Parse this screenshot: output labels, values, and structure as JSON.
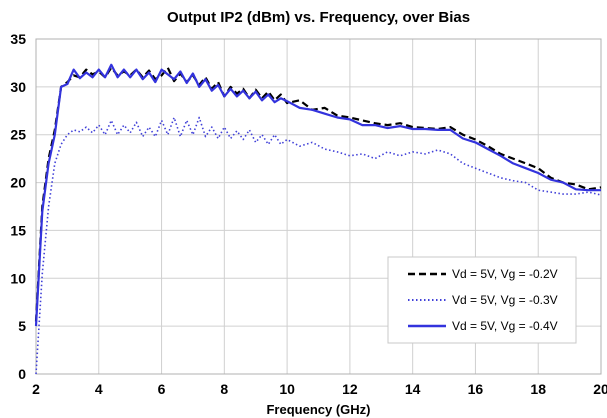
{
  "chart_data": {
    "type": "line",
    "title": "Output IP2 (dBm) vs. Frequency, over Bias",
    "xlabel": "Frequency (GHz)",
    "ylabel": "",
    "xlim": [
      2,
      20
    ],
    "ylim": [
      0,
      35
    ],
    "xticks": [
      2,
      4,
      6,
      8,
      10,
      12,
      14,
      16,
      18,
      20
    ],
    "yticks": [
      0,
      5,
      10,
      15,
      20,
      25,
      30,
      35
    ],
    "grid": true,
    "legend_position": "bottom-right",
    "series": [
      {
        "name": "Vd = 5V, Vg = -0.2V",
        "color": "#000000",
        "style": "dashed",
        "x": [
          2.0,
          2.2,
          2.4,
          2.6,
          2.8,
          3.0,
          3.2,
          3.4,
          3.6,
          3.8,
          4.0,
          4.2,
          4.4,
          4.6,
          4.8,
          5.0,
          5.2,
          5.4,
          5.6,
          5.8,
          6.0,
          6.2,
          6.4,
          6.6,
          6.8,
          7.0,
          7.2,
          7.4,
          7.6,
          7.8,
          8.0,
          8.2,
          8.4,
          8.6,
          8.8,
          9.0,
          9.2,
          9.4,
          9.6,
          9.8,
          10.0,
          10.4,
          10.8,
          11.2,
          11.6,
          12.0,
          12.4,
          12.8,
          13.2,
          13.6,
          14.0,
          14.4,
          14.8,
          15.2,
          15.6,
          16.0,
          16.4,
          16.8,
          17.2,
          17.6,
          18.0,
          18.4,
          18.8,
          19.2,
          19.6,
          20.0
        ],
        "y": [
          5.5,
          17.5,
          22.5,
          25.5,
          30.0,
          30.5,
          31.2,
          31.0,
          31.8,
          31.3,
          31.6,
          31.0,
          32.0,
          31.2,
          31.6,
          31.2,
          31.8,
          31.0,
          31.7,
          30.8,
          31.2,
          32.0,
          30.6,
          31.4,
          30.5,
          31.2,
          30.2,
          31.0,
          29.8,
          30.5,
          29.0,
          30.0,
          29.3,
          29.8,
          28.8,
          29.7,
          28.8,
          29.5,
          28.6,
          29.2,
          28.3,
          28.6,
          27.6,
          27.8,
          27.0,
          26.8,
          26.5,
          26.2,
          26.0,
          26.2,
          25.8,
          25.7,
          25.6,
          25.8,
          25.0,
          24.5,
          23.8,
          23.0,
          22.5,
          22.0,
          21.5,
          20.5,
          20.0,
          19.8,
          19.3,
          19.5
        ]
      },
      {
        "name": "Vd = 5V, Vg = -0.3V",
        "color": "#4040d8",
        "style": "dotted",
        "x": [
          2.0,
          2.2,
          2.4,
          2.6,
          2.8,
          3.0,
          3.2,
          3.4,
          3.6,
          3.8,
          4.0,
          4.2,
          4.4,
          4.6,
          4.8,
          5.0,
          5.2,
          5.4,
          5.6,
          5.8,
          6.0,
          6.2,
          6.4,
          6.6,
          6.8,
          7.0,
          7.2,
          7.4,
          7.6,
          7.8,
          8.0,
          8.2,
          8.4,
          8.6,
          8.8,
          9.0,
          9.2,
          9.4,
          9.6,
          9.8,
          10.0,
          10.4,
          10.8,
          11.2,
          11.6,
          12.0,
          12.4,
          12.8,
          13.2,
          13.6,
          14.0,
          14.4,
          14.8,
          15.2,
          15.6,
          16.0,
          16.4,
          16.8,
          17.2,
          17.6,
          18.0,
          18.4,
          18.8,
          19.2,
          19.6,
          20.0
        ],
        "y": [
          0.0,
          10.5,
          17.5,
          22.0,
          24.0,
          25.0,
          25.5,
          25.3,
          25.8,
          25.2,
          26.0,
          25.0,
          26.5,
          25.0,
          26.0,
          25.2,
          26.3,
          24.8,
          25.8,
          24.8,
          26.5,
          25.0,
          26.8,
          24.8,
          26.5,
          25.0,
          26.8,
          24.8,
          25.8,
          24.6,
          25.8,
          24.6,
          25.4,
          24.5,
          25.5,
          24.2,
          25.0,
          24.0,
          25.0,
          24.0,
          24.5,
          23.8,
          24.2,
          23.5,
          23.2,
          22.8,
          23.0,
          22.5,
          23.2,
          22.8,
          23.2,
          23.0,
          23.4,
          23.0,
          22.0,
          21.5,
          21.0,
          20.5,
          20.2,
          20.0,
          19.2,
          19.0,
          18.8,
          18.8,
          19.0,
          18.7
        ]
      },
      {
        "name": "Vd = 5V, Vg = -0.4V",
        "color": "#3333dd",
        "style": "solid",
        "x": [
          2.0,
          2.2,
          2.4,
          2.6,
          2.8,
          3.0,
          3.2,
          3.4,
          3.6,
          3.8,
          4.0,
          4.2,
          4.4,
          4.6,
          4.8,
          5.0,
          5.2,
          5.4,
          5.6,
          5.8,
          6.0,
          6.2,
          6.4,
          6.6,
          6.8,
          7.0,
          7.2,
          7.4,
          7.6,
          7.8,
          8.0,
          8.2,
          8.4,
          8.6,
          8.8,
          9.0,
          9.2,
          9.4,
          9.6,
          9.8,
          10.0,
          10.4,
          10.8,
          11.2,
          11.6,
          12.0,
          12.4,
          12.8,
          13.2,
          13.6,
          14.0,
          14.4,
          14.8,
          15.2,
          15.6,
          16.0,
          16.4,
          16.8,
          17.2,
          17.6,
          18.0,
          18.4,
          18.8,
          19.2,
          19.6,
          20.0
        ],
        "y": [
          5.0,
          17.0,
          22.0,
          25.0,
          30.0,
          30.3,
          31.8,
          30.9,
          31.5,
          31.0,
          31.8,
          31.0,
          32.3,
          31.0,
          31.8,
          31.0,
          31.8,
          30.8,
          31.5,
          30.5,
          31.8,
          31.3,
          30.8,
          31.6,
          30.4,
          31.4,
          30.0,
          30.8,
          29.6,
          30.2,
          29.0,
          29.8,
          29.0,
          29.6,
          28.8,
          29.5,
          28.6,
          29.2,
          28.4,
          28.8,
          28.5,
          27.8,
          27.6,
          27.2,
          26.8,
          26.6,
          26.0,
          26.0,
          25.7,
          25.9,
          25.6,
          25.6,
          25.5,
          25.5,
          24.6,
          24.2,
          23.5,
          22.8,
          22.0,
          21.5,
          21.0,
          20.3,
          20.0,
          19.3,
          19.2,
          19.2
        ]
      }
    ]
  }
}
